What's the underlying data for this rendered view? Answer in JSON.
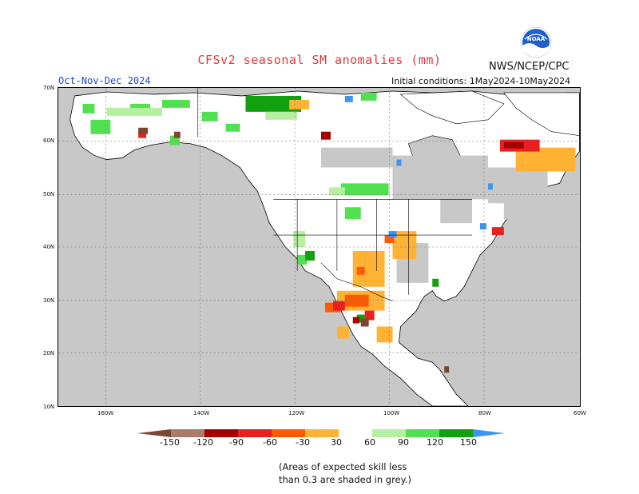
{
  "header": {
    "title": "CFSv2 seasonal SM anomalies (mm)",
    "org": "NWS/NCEP/CPC",
    "period": "Oct-Nov-Dec 2024",
    "initial_conditions": "Initial conditions: 1May2024-10May2024",
    "logo_text": "NOAA"
  },
  "map": {
    "lat_labels": [
      "70N",
      "60N",
      "50N",
      "40N",
      "30N",
      "20N",
      "10N"
    ],
    "lon_labels": [
      "160W",
      "140W",
      "120W",
      "100W",
      "80W",
      "60W"
    ],
    "masked_color": "#c8c8c8",
    "land_color": "#ffffff"
  },
  "legend": {
    "labels": [
      "-150",
      "-120",
      "-90",
      "-60",
      "-30",
      "30",
      "60",
      "90",
      "120",
      "150"
    ],
    "colors": [
      "#7c4633",
      "#a87c68",
      "#a50000",
      "#e82020",
      "#ff5a00",
      "#ffb233",
      "#ffffff",
      "#b4f0a0",
      "#50e050",
      "#10a010",
      "#3c96f0",
      "#2050d0"
    ],
    "note_line1": "(Areas of expected skill less",
    "note_line2": "than 0.3 are shaded in grey.)"
  }
}
